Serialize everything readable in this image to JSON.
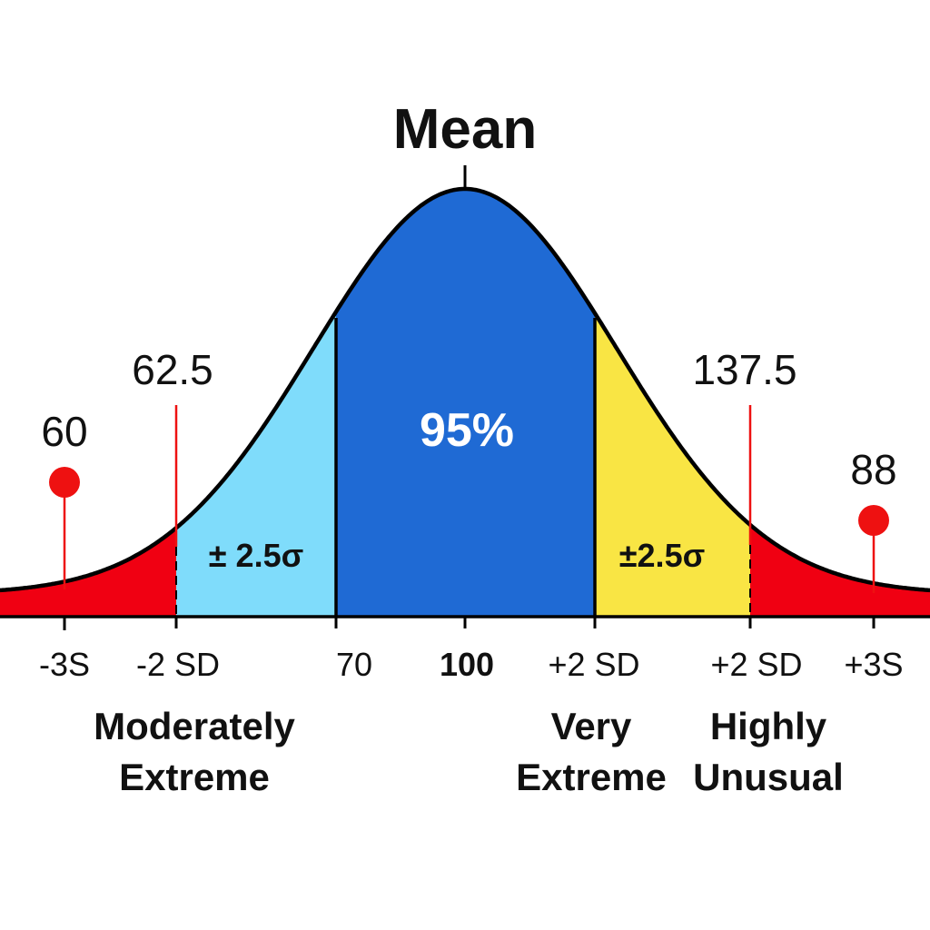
{
  "chart_data": {
    "type": "area",
    "title": "Mean",
    "description": "Normal distribution (bell curve) with shaded regions",
    "mean": 100,
    "center_region_label": "95%",
    "side_region_labels": [
      "± 2.5σ",
      "±2.5σ"
    ],
    "regions": [
      {
        "name": "left-tail",
        "from": "-inf",
        "to": "-2 SD",
        "color": "#f00012"
      },
      {
        "name": "left-band",
        "from": "-2 SD",
        "to": "70",
        "color": "#7fdcfb",
        "label": "± 2.5σ"
      },
      {
        "name": "center",
        "from": "70",
        "to": "+2 SD",
        "color": "#1f6ad4",
        "label": "95%"
      },
      {
        "name": "right-band",
        "from": "+2 SD",
        "to": "+2 SD",
        "color": "#f9e544",
        "label": "±2.5σ"
      },
      {
        "name": "right-tail",
        "from": "+2 SD",
        "to": "+inf",
        "color": "#f00012"
      }
    ],
    "x_tick_labels": [
      "-3S",
      "-2 SD",
      "70",
      "100",
      "+2 SD",
      "+2 SD",
      "+3S"
    ],
    "value_annotations": [
      {
        "label": "60",
        "position": "-3S",
        "marker": "dot"
      },
      {
        "label": "62.5",
        "position": "-2 SD",
        "marker": "line"
      },
      {
        "label": "137.5",
        "position": "+2 SD (right)",
        "marker": "line"
      },
      {
        "label": "88",
        "position": "+3S",
        "marker": "dot"
      }
    ],
    "category_labels": [
      {
        "text": [
          "Moderately",
          "Extreme"
        ],
        "position": "left"
      },
      {
        "text": [
          "Very",
          "Extreme"
        ],
        "position": "center-right"
      },
      {
        "text": [
          "Highly",
          "Unusual"
        ],
        "position": "right"
      }
    ],
    "grid": false,
    "legend": "none"
  },
  "labels": {
    "title": "Mean",
    "center_pct": "95%",
    "left_sigma": "± 2.5σ",
    "right_sigma": "±2.5σ",
    "annot_60": "60",
    "annot_62_5": "62.5",
    "annot_137_5": "137.5",
    "annot_88": "88",
    "ticks": [
      "-3S",
      "-2 SD",
      "70",
      "100",
      "+2 SD",
      "+2 SD",
      "+3S"
    ],
    "cat_moderately": "Moderately",
    "cat_extreme_1": "Extreme",
    "cat_very": "Very",
    "cat_extreme_2": "Extreme",
    "cat_highly": "Highly",
    "cat_unusual": "Unusual"
  },
  "colors": {
    "tail": "#f00012",
    "left_band": "#7fdcfb",
    "center": "#1f6ad4",
    "right_band": "#f9e544",
    "marker": "#ee1111"
  }
}
